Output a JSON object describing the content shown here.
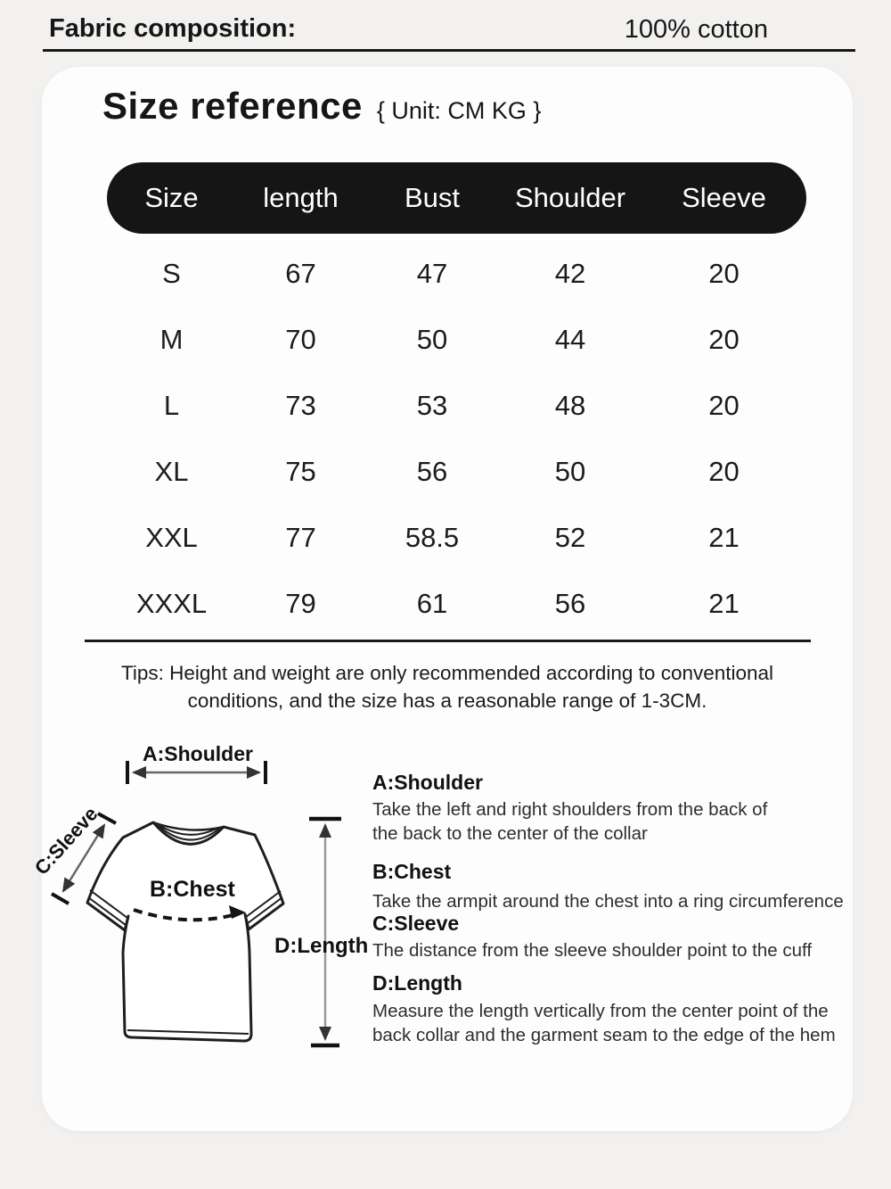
{
  "fabric": {
    "label": "Fabric composition:",
    "value": "100% cotton"
  },
  "size_reference": {
    "title": "Size reference",
    "unit_note": "{ Unit: CM KG }",
    "table": {
      "headers": [
        "Size",
        "length",
        "Bust",
        "Shoulder",
        "Sleeve"
      ],
      "rows": [
        [
          "S",
          "67",
          "47",
          "42",
          "20"
        ],
        [
          "M",
          "70",
          "50",
          "44",
          "20"
        ],
        [
          "L",
          "73",
          "53",
          "48",
          "20"
        ],
        [
          "XL",
          "75",
          "56",
          "50",
          "20"
        ],
        [
          "XXL",
          "77",
          "58.5",
          "52",
          "21"
        ],
        [
          "XXXL",
          "79",
          "61",
          "56",
          "21"
        ]
      ]
    },
    "tips": "Tips: Height and weight are only recommended according to conventional\nconditions, and the size has a reasonable range of 1-3CM."
  },
  "diagram_labels": {
    "shoulder": "A:Shoulder",
    "sleeve": "C:Sleeve",
    "chest": "B:Chest",
    "length": "D:Length"
  },
  "measure_guide": [
    {
      "heading": "A:Shoulder",
      "desc": "Take the left and right shoulders from the back of\nthe back to the center of the collar"
    },
    {
      "heading": "B:Chest",
      "desc": "Take the armpit around the chest into a ring circumference"
    },
    {
      "heading": "C:Sleeve",
      "desc": "The distance from the sleeve shoulder point to the cuff"
    },
    {
      "heading": "D:Length",
      "desc": "Measure the length vertically from the center point of the\nback collar and the garment seam to the edge of the hem"
    }
  ],
  "colors": {
    "page_bg": "#f2f1ef",
    "card_bg": "#fdfdfd",
    "header_pill_bg": "#151515",
    "header_pill_text": "#ffffff",
    "text": "#161616"
  }
}
